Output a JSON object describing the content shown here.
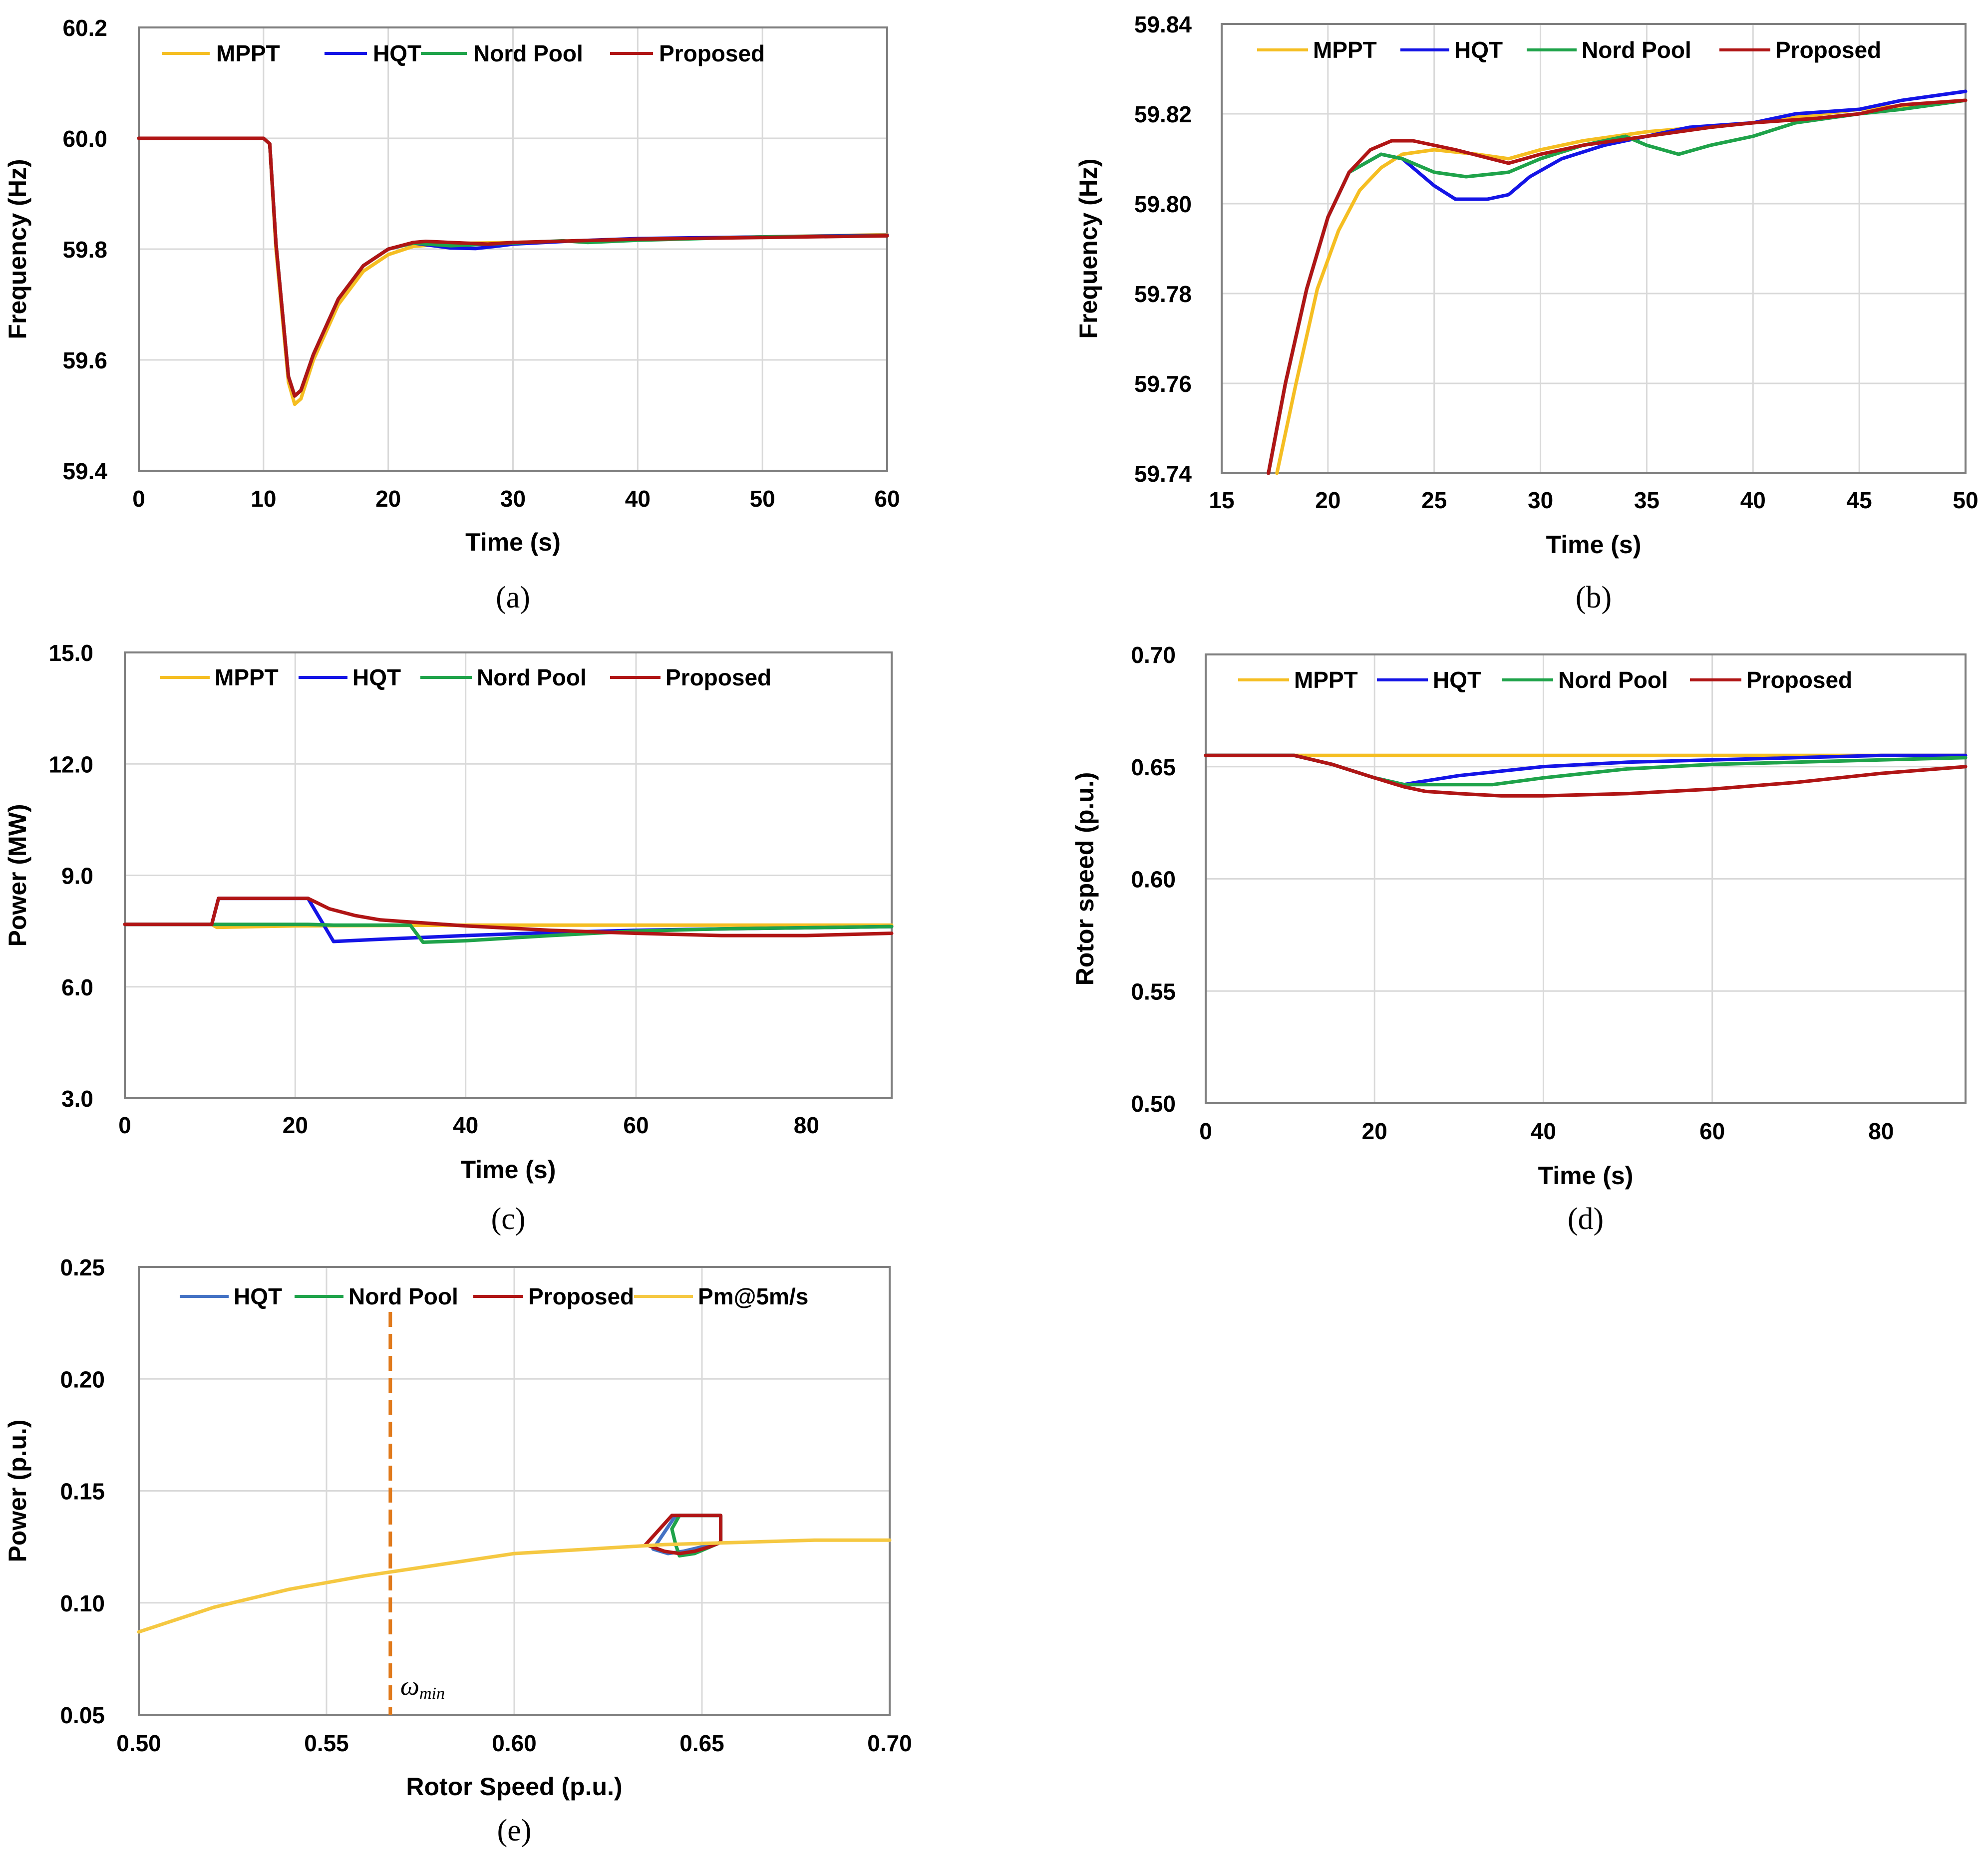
{
  "colors": {
    "mppt": "#F5BE22",
    "hqt": "#1414E6",
    "hqt_light": "#4472C4",
    "nord_pool": "#1FA34A",
    "proposed": "#B01515",
    "pm5": "#F5C842",
    "omega_min": "#E07A1C",
    "grid": "#d9d9d9",
    "frame": "#7f7f7f",
    "text": "#000000"
  },
  "chart_data": [
    {
      "id": "a",
      "type": "line",
      "panel_label": "(a)",
      "title": "",
      "xlabel": "Time (s)",
      "ylabel": "Frequency  (Hz)",
      "xlim": [
        0,
        60
      ],
      "ylim": [
        59.4,
        60.2
      ],
      "xticks": [
        0,
        10,
        20,
        30,
        40,
        50,
        60
      ],
      "xtick_labels": [
        "0",
        "10",
        "20",
        "30",
        "40",
        "50",
        "60"
      ],
      "yticks": [
        59.4,
        59.6,
        59.8,
        60.0,
        60.2
      ],
      "ytick_labels": [
        "59.4",
        "59.6",
        "59.8",
        "60.0",
        "60.2"
      ],
      "grid": true,
      "legend": "top",
      "series": [
        {
          "name": "MPPT",
          "color_key": "mppt",
          "x": [
            0,
            10,
            10.5,
            11,
            12,
            12.5,
            13,
            14,
            16,
            18,
            20,
            22,
            25,
            30,
            40,
            50,
            60
          ],
          "y": [
            60.0,
            60.0,
            59.99,
            59.8,
            59.56,
            59.52,
            59.53,
            59.6,
            59.7,
            59.76,
            59.79,
            59.805,
            59.81,
            59.812,
            59.818,
            59.822,
            59.826
          ]
        },
        {
          "name": "HQT",
          "color_key": "hqt",
          "x": [
            0,
            10,
            10.5,
            11,
            12,
            12.5,
            13,
            14,
            16,
            18,
            20,
            22,
            23,
            25,
            27,
            29,
            30,
            35,
            40,
            50,
            60
          ],
          "y": [
            60.0,
            60.0,
            59.99,
            59.81,
            59.57,
            59.535,
            59.545,
            59.61,
            59.71,
            59.77,
            59.8,
            59.811,
            59.808,
            59.802,
            59.801,
            59.806,
            59.809,
            59.815,
            59.819,
            59.822,
            59.825
          ]
        },
        {
          "name": "Nord Pool",
          "color_key": "nord_pool",
          "x": [
            0,
            10,
            10.5,
            11,
            12,
            12.5,
            13,
            14,
            16,
            18,
            20,
            22,
            25,
            30,
            34,
            36,
            40,
            50,
            60
          ],
          "y": [
            60.0,
            60.0,
            59.99,
            59.81,
            59.57,
            59.535,
            59.545,
            59.61,
            59.71,
            59.77,
            59.8,
            59.811,
            59.806,
            59.811,
            59.815,
            59.812,
            59.816,
            59.822,
            59.824
          ]
        },
        {
          "name": "Proposed",
          "color_key": "proposed",
          "x": [
            0,
            10,
            10.5,
            11,
            12,
            12.5,
            13,
            14,
            16,
            18,
            20,
            22,
            23,
            25,
            28,
            30,
            35,
            40,
            50,
            60
          ],
          "y": [
            60.0,
            60.0,
            59.99,
            59.81,
            59.57,
            59.535,
            59.545,
            59.61,
            59.71,
            59.77,
            59.8,
            59.812,
            59.814,
            59.812,
            59.809,
            59.812,
            59.815,
            59.818,
            59.821,
            59.824
          ]
        }
      ]
    },
    {
      "id": "b",
      "type": "line",
      "panel_label": "(b)",
      "title": "",
      "xlabel": "Time (s)",
      "ylabel": "Frequency  (Hz)",
      "xlim": [
        15,
        50
      ],
      "ylim": [
        59.74,
        59.84
      ],
      "xticks": [
        15,
        20,
        25,
        30,
        35,
        40,
        45,
        50
      ],
      "xtick_labels": [
        "15",
        "20",
        "25",
        "30",
        "35",
        "40",
        "45",
        "50"
      ],
      "yticks": [
        59.74,
        59.76,
        59.78,
        59.8,
        59.82,
        59.84
      ],
      "ytick_labels": [
        "59.74",
        "59.76",
        "59.78",
        "59.80",
        "59.82",
        "59.84"
      ],
      "grid": true,
      "legend": "top",
      "series": [
        {
          "name": "MPPT",
          "color_key": "mppt",
          "x": [
            17.6,
            18.5,
            19.5,
            20.5,
            21.5,
            22.5,
            23.5,
            25,
            27,
            28.5,
            30,
            32,
            35,
            40,
            45,
            50
          ],
          "y": [
            59.74,
            59.76,
            59.781,
            59.794,
            59.803,
            59.808,
            59.811,
            59.812,
            59.811,
            59.81,
            59.812,
            59.814,
            59.816,
            59.818,
            59.821,
            59.823
          ]
        },
        {
          "name": "HQT",
          "color_key": "hqt",
          "x": [
            17.2,
            18,
            19,
            20,
            21,
            22.5,
            23.5,
            25,
            26,
            27.5,
            28.5,
            29.5,
            31,
            33,
            35,
            37,
            40,
            42,
            45,
            47,
            50
          ],
          "y": [
            59.74,
            59.76,
            59.781,
            59.797,
            59.807,
            59.811,
            59.81,
            59.804,
            59.801,
            59.801,
            59.802,
            59.806,
            59.81,
            59.813,
            59.815,
            59.817,
            59.818,
            59.82,
            59.821,
            59.823,
            59.825
          ]
        },
        {
          "name": "Nord Pool",
          "color_key": "nord_pool",
          "x": [
            17.2,
            18,
            19,
            20,
            21,
            22.5,
            23.5,
            25,
            26.5,
            28.5,
            30,
            32,
            34,
            35,
            36.5,
            38,
            40,
            42,
            45,
            47,
            50
          ],
          "y": [
            59.74,
            59.76,
            59.781,
            59.797,
            59.807,
            59.811,
            59.81,
            59.807,
            59.806,
            59.807,
            59.81,
            59.813,
            59.815,
            59.813,
            59.811,
            59.813,
            59.815,
            59.818,
            59.82,
            59.821,
            59.823
          ]
        },
        {
          "name": "Proposed",
          "color_key": "proposed",
          "x": [
            17.2,
            18,
            19,
            20,
            21,
            22,
            23,
            24,
            26,
            28.5,
            30,
            32,
            35,
            38,
            40,
            43,
            45,
            47,
            50
          ],
          "y": [
            59.74,
            59.76,
            59.781,
            59.797,
            59.807,
            59.812,
            59.814,
            59.814,
            59.812,
            59.809,
            59.811,
            59.813,
            59.815,
            59.817,
            59.818,
            59.819,
            59.82,
            59.822,
            59.823
          ]
        }
      ]
    },
    {
      "id": "c",
      "type": "line",
      "panel_label": "(c)",
      "title": "",
      "xlabel": "Time (s)",
      "ylabel": "Power (MW)",
      "xlim": [
        0,
        90
      ],
      "ylim": [
        3.0,
        15.0
      ],
      "xticks": [
        0,
        20,
        40,
        60,
        80
      ],
      "xtick_labels": [
        "0",
        "20",
        "40",
        "60",
        "80"
      ],
      "yticks": [
        3.0,
        6.0,
        9.0,
        12.0,
        15.0
      ],
      "ytick_labels": [
        "3.0",
        "6.0",
        "9.0",
        "12.0",
        "15.0"
      ],
      "grid": true,
      "legend": "top",
      "series": [
        {
          "name": "MPPT",
          "color_key": "mppt",
          "x": [
            0,
            10.2,
            10.8,
            20,
            40,
            60,
            90
          ],
          "y": [
            7.68,
            7.68,
            7.6,
            7.64,
            7.66,
            7.66,
            7.66
          ]
        },
        {
          "name": "HQT",
          "color_key": "hqt",
          "x": [
            0,
            10.2,
            11,
            21.5,
            24.5,
            30,
            40,
            50,
            60,
            70,
            90
          ],
          "y": [
            7.68,
            7.68,
            8.38,
            8.38,
            7.22,
            7.28,
            7.38,
            7.46,
            7.52,
            7.56,
            7.62
          ]
        },
        {
          "name": "Nord Pool",
          "color_key": "nord_pool",
          "x": [
            0,
            21.5,
            24.5,
            33.5,
            35,
            40,
            50,
            60,
            70,
            90
          ],
          "y": [
            7.68,
            7.68,
            7.66,
            7.66,
            7.2,
            7.24,
            7.38,
            7.5,
            7.56,
            7.62
          ]
        },
        {
          "name": "Proposed",
          "color_key": "proposed",
          "x": [
            0,
            10.2,
            11,
            21.5,
            24,
            27,
            30,
            35,
            40,
            50,
            60,
            70,
            80,
            90
          ],
          "y": [
            7.68,
            7.68,
            8.38,
            8.38,
            8.1,
            7.92,
            7.8,
            7.72,
            7.64,
            7.52,
            7.44,
            7.38,
            7.38,
            7.44
          ]
        }
      ]
    },
    {
      "id": "d",
      "type": "line",
      "panel_label": "(d)",
      "title": "",
      "xlabel": "Time (s)",
      "ylabel": "Rotor speed (p.u.)",
      "xlim": [
        0,
        90
      ],
      "ylim": [
        0.5,
        0.7
      ],
      "xticks": [
        0,
        20,
        40,
        60,
        80
      ],
      "xtick_labels": [
        "0",
        "20",
        "40",
        "60",
        "80"
      ],
      "yticks": [
        0.5,
        0.55,
        0.6,
        0.65,
        0.7
      ],
      "ytick_labels": [
        "0.50",
        "0.55",
        "0.60",
        "0.65",
        "0.70"
      ],
      "grid": true,
      "legend": "top",
      "series": [
        {
          "name": "MPPT",
          "color_key": "mppt",
          "x": [
            0,
            90
          ],
          "y": [
            0.655,
            0.655
          ]
        },
        {
          "name": "HQT",
          "color_key": "hqt",
          "x": [
            0,
            10.5,
            15,
            20,
            23.5,
            25,
            30,
            40,
            50,
            60,
            70,
            80,
            90
          ],
          "y": [
            0.655,
            0.655,
            0.651,
            0.645,
            0.642,
            0.643,
            0.646,
            0.65,
            0.652,
            0.653,
            0.654,
            0.655,
            0.655
          ]
        },
        {
          "name": "Nord Pool",
          "color_key": "nord_pool",
          "x": [
            0,
            10.5,
            15,
            20,
            23.5,
            26,
            30,
            34,
            40,
            50,
            60,
            70,
            80,
            90
          ],
          "y": [
            0.655,
            0.655,
            0.651,
            0.645,
            0.642,
            0.642,
            0.642,
            0.642,
            0.645,
            0.649,
            0.651,
            0.652,
            0.653,
            0.654
          ]
        },
        {
          "name": "Proposed",
          "color_key": "proposed",
          "x": [
            0,
            10.5,
            15,
            20,
            23.5,
            26,
            30,
            35,
            40,
            50,
            60,
            70,
            80,
            90
          ],
          "y": [
            0.655,
            0.655,
            0.651,
            0.645,
            0.641,
            0.639,
            0.638,
            0.637,
            0.637,
            0.638,
            0.64,
            0.643,
            0.647,
            0.65
          ]
        }
      ]
    },
    {
      "id": "e",
      "type": "line",
      "panel_label": "(e)",
      "title": "",
      "xlabel": "Rotor Speed (p.u.)",
      "ylabel": "Power (p.u.)",
      "xlim": [
        0.5,
        0.7
      ],
      "ylim": [
        0.05,
        0.25
      ],
      "xticks": [
        0.5,
        0.55,
        0.6,
        0.65,
        0.7
      ],
      "xtick_labels": [
        "0.50",
        "0.55",
        "0.60",
        "0.65",
        "0.70"
      ],
      "yticks": [
        0.05,
        0.1,
        0.15,
        0.2,
        0.25
      ],
      "ytick_labels": [
        "0.05",
        "0.10",
        "0.15",
        "0.20",
        "0.25"
      ],
      "grid": true,
      "legend": "top",
      "annotation": {
        "text": "ωmin",
        "x": 0.567
      },
      "series": [
        {
          "name": "HQT",
          "color_key": "hqt_light",
          "x": [
            0.655,
            0.655,
            0.643,
            0.637,
            0.641,
            0.645,
            0.655
          ],
          "y": [
            0.127,
            0.139,
            0.139,
            0.124,
            0.122,
            0.123,
            0.127
          ]
        },
        {
          "name": "Nord Pool",
          "color_key": "nord_pool",
          "x": [
            0.655,
            0.655,
            0.644,
            0.642,
            0.643,
            0.644,
            0.648,
            0.655
          ],
          "y": [
            0.127,
            0.139,
            0.139,
            0.133,
            0.126,
            0.121,
            0.122,
            0.127
          ]
        },
        {
          "name": "Proposed",
          "color_key": "proposed",
          "x": [
            0.655,
            0.655,
            0.642,
            0.635,
            0.64,
            0.644,
            0.648,
            0.652,
            0.655
          ],
          "y": [
            0.127,
            0.139,
            0.139,
            0.126,
            0.123,
            0.122,
            0.123,
            0.125,
            0.127
          ]
        },
        {
          "name": "Pm@5m/s",
          "color_key": "pm5",
          "x": [
            0.5,
            0.52,
            0.54,
            0.56,
            0.58,
            0.6,
            0.62,
            0.64,
            0.66,
            0.68,
            0.7
          ],
          "y": [
            0.087,
            0.098,
            0.106,
            0.112,
            0.117,
            0.122,
            0.124,
            0.126,
            0.127,
            0.128,
            0.128
          ]
        }
      ]
    }
  ]
}
